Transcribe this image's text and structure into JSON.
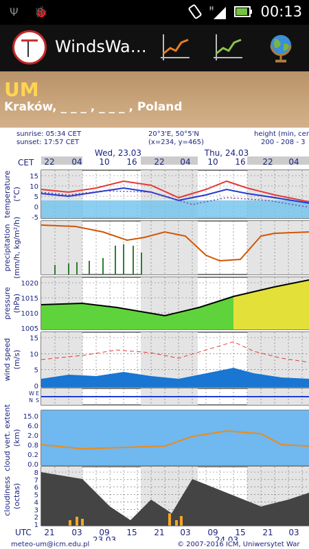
{
  "status": {
    "time": "00:13"
  },
  "app": {
    "title": "WindsWa…"
  },
  "header": {
    "model": "UM",
    "location": "Kraków, _ _ _ , _ _ _ , Poland"
  },
  "meta": {
    "sunrise": "sunrise: 05:34 CET",
    "sunset": "sunset: 17:57 CET",
    "coords": "20°3'E, 50°5'N",
    "grid": "(x=234, y=465)",
    "height_label": "height (min, cen",
    "height_values": "200 - 208 - 3"
  },
  "chart": {
    "tz_top": "CET",
    "tz_bottom": "UTC",
    "top_hours": [
      "22",
      "04",
      "10",
      "16",
      "22",
      "04",
      "10",
      "16",
      "22",
      "04"
    ],
    "top_days": [
      "Wed, 23.03",
      "Thu, 24.03"
    ],
    "bottom_hours": [
      "21",
      "03",
      "09",
      "15",
      "21",
      "03",
      "09",
      "15",
      "21",
      "03"
    ],
    "bottom_dates": [
      "23.03",
      "24.03"
    ],
    "panels": [
      {
        "label": "temperature",
        "unit": "(°C)",
        "ticks": [
          "15",
          "10",
          "5",
          "0",
          "-5"
        ]
      },
      {
        "label": "precipitation",
        "unit": "(mm/h, kg/m²/h)",
        "ticks": []
      },
      {
        "label": "pressure",
        "unit": "(hPa)",
        "ticks": [
          "1020",
          "1015",
          "1010",
          "1005"
        ]
      },
      {
        "label": "wind speed",
        "unit": "(m/s)",
        "ticks": [
          "15",
          "10",
          "5",
          "0"
        ]
      },
      {
        "label": "",
        "unit": "",
        "ticks": []
      },
      {
        "label": "cloud vert. extent",
        "unit": "(km)",
        "ticks": [
          "15.0",
          "6.0",
          "2.0",
          "0.8",
          "0.2",
          "0.0"
        ]
      },
      {
        "label": "cloudiness",
        "unit": "(octas)",
        "ticks": [
          "8",
          "7",
          "6",
          "5",
          "4",
          "3",
          "2",
          "1"
        ]
      }
    ],
    "compass": [
      "W",
      "E",
      "N",
      "S"
    ]
  },
  "footer": {
    "email": "meteo-um@icm.edu.pl",
    "copyright": "© 2007-2016 ICM, Uniwersytet War"
  }
}
